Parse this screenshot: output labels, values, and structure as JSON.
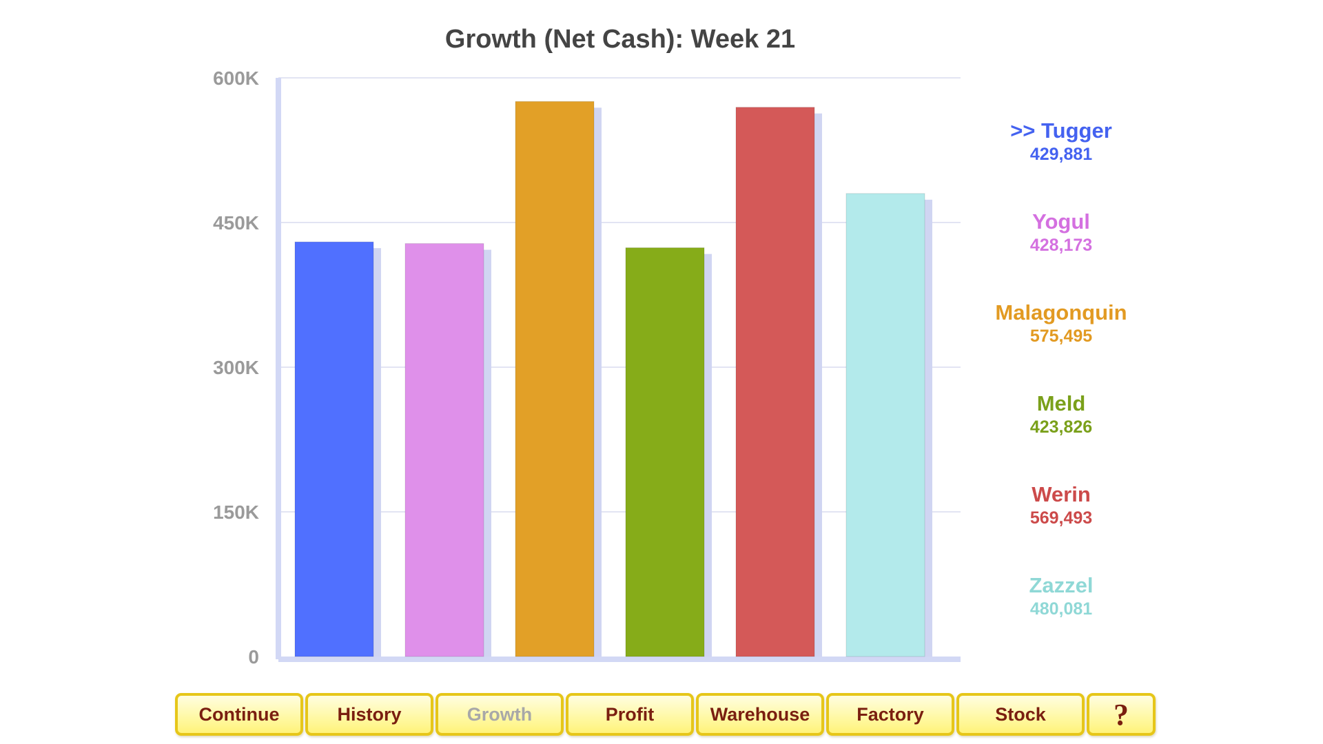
{
  "chart_data": {
    "type": "bar",
    "title": "Growth (Net Cash): Week 21",
    "xlabel": "",
    "ylabel": "",
    "ylim": [
      0,
      600000
    ],
    "yticks": [
      0,
      150000,
      300000,
      450000,
      600000
    ],
    "ytick_labels": [
      "0",
      "150K",
      "300K",
      "450K",
      "600K"
    ],
    "grid": true,
    "legend_placement": "right",
    "categories": [
      "Tugger",
      "Yogul",
      "Malagonquin",
      "Meld",
      "Werin",
      "Zazzel"
    ],
    "values": [
      429881,
      428173,
      575495,
      423826,
      569493,
      480081
    ],
    "value_labels": [
      "429,881",
      "428,173",
      "575,495",
      "423,826",
      "569,493",
      "480,081"
    ],
    "colors": [
      "#5070ff",
      "#df90ea",
      "#e2a027",
      "#86ac19",
      "#d45958",
      "#b3eaeb"
    ],
    "legend_text_colors": [
      "#4462f0",
      "#d470e0",
      "#e29a22",
      "#7aa01a",
      "#cc4a4a",
      "#8fd8d6"
    ]
  },
  "legend": {
    "items": [
      {
        "label": ">> Tugger",
        "value": "429,881"
      },
      {
        "label": "Yogul",
        "value": "428,173"
      },
      {
        "label": "Malagonquin",
        "value": "575,495"
      },
      {
        "label": "Meld",
        "value": "423,826"
      },
      {
        "label": "Werin",
        "value": "569,493"
      },
      {
        "label": "Zazzel",
        "value": "480,081"
      }
    ]
  },
  "toolbar": {
    "buttons": [
      {
        "label": "Continue",
        "disabled": false
      },
      {
        "label": "History",
        "disabled": false
      },
      {
        "label": "Growth",
        "disabled": true
      },
      {
        "label": "Profit",
        "disabled": false
      },
      {
        "label": "Warehouse",
        "disabled": false
      },
      {
        "label": "Factory",
        "disabled": false
      },
      {
        "label": "Stock",
        "disabled": false
      },
      {
        "label": "?",
        "disabled": false
      }
    ]
  },
  "colors": {
    "axis": "#d2d8f5",
    "grid": "#d8dcef",
    "tick_label": "#9a9a9a",
    "button_border": "#e6c619",
    "button_text": "#7a1f10",
    "button_disabled_text": "#a8a8a8"
  }
}
